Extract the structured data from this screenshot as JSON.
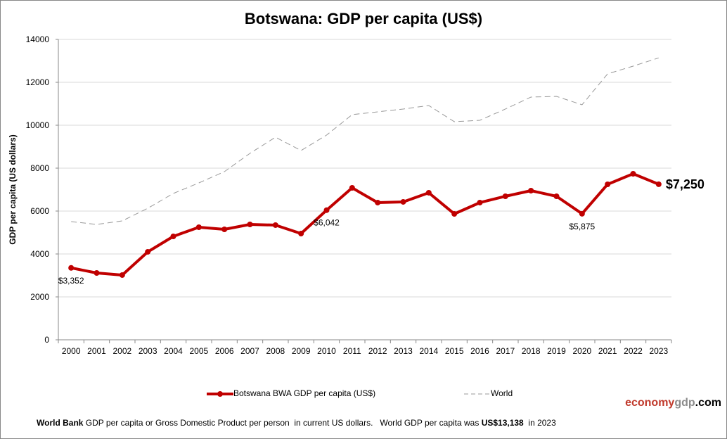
{
  "chart_data": {
    "type": "line",
    "title": "Botswana: GDP per capita (US$)",
    "xlabel": "",
    "ylabel": "GDP per capita (US dollars)",
    "ylim": [
      0,
      14000
    ],
    "yticks": [
      0,
      2000,
      4000,
      6000,
      8000,
      10000,
      12000,
      14000
    ],
    "grid": true,
    "legend_placement": "bottom",
    "categories": [
      "2000",
      "2001",
      "2002",
      "2003",
      "2004",
      "2005",
      "2006",
      "2007",
      "2008",
      "2009",
      "2010",
      "2011",
      "2012",
      "2013",
      "2014",
      "2015",
      "2016",
      "2017",
      "2018",
      "2019",
      "2020",
      "2021",
      "2022",
      "2023"
    ],
    "series": [
      {
        "name": "Botswana BWA GDP per capita (US$)",
        "color": "#c00000",
        "style": "solid-markers",
        "values": [
          3352,
          3115,
          3017,
          4099,
          4820,
          5246,
          5148,
          5377,
          5345,
          4951,
          6042,
          7082,
          6394,
          6427,
          6853,
          5869,
          6394,
          6689,
          6951,
          6689,
          5875,
          7246,
          7738,
          7250
        ]
      },
      {
        "name": "World",
        "color": "#999999",
        "style": "dashed",
        "values": [
          5509,
          5377,
          5541,
          6131,
          6820,
          7312,
          7837,
          8689,
          9443,
          8820,
          9541,
          10493,
          10624,
          10755,
          10919,
          10165,
          10230,
          10755,
          11312,
          11345,
          10952,
          12395,
          12755,
          13138
        ]
      }
    ],
    "annotations": [
      {
        "index": 0,
        "text": "$3,352"
      },
      {
        "index": 10,
        "text": "$6,042"
      },
      {
        "index": 20,
        "text": "$5,875"
      },
      {
        "index": 23,
        "text": "$7,250",
        "bold": true
      }
    ]
  },
  "logo": {
    "part1": "economy",
    "part2": "gdp",
    "part3": ".com",
    "color1": "#c0392b",
    "color2": "#8c8c8c"
  },
  "footer": {
    "bold1": "World Bank",
    "text1": " GDP per capita or Gross Domestic Product per person  in current US dollars.   World GDP per capita was ",
    "bold2": "US$13,138",
    "text2": "  in 2023"
  }
}
